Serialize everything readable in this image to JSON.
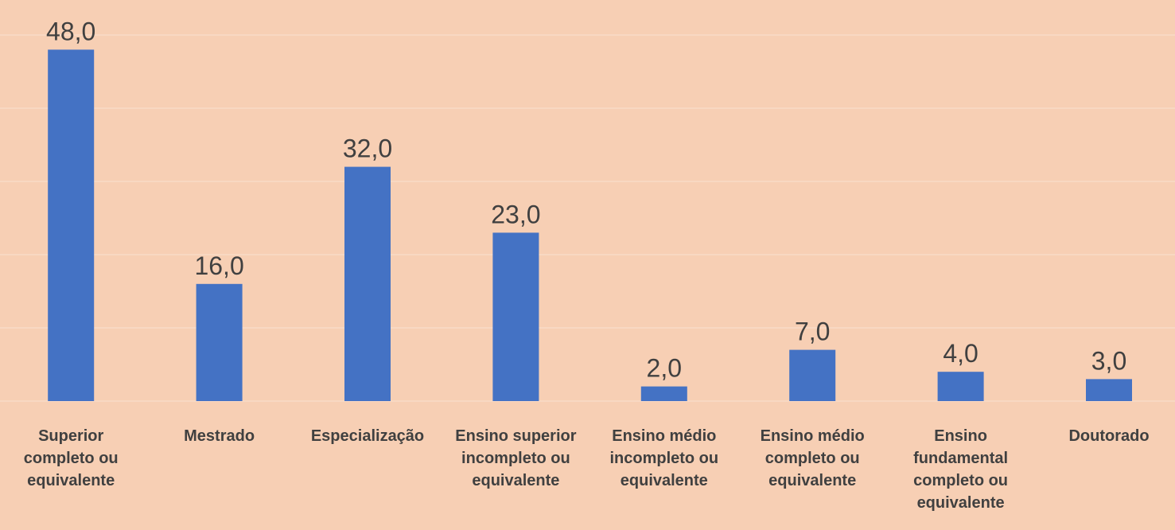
{
  "chart_data": {
    "type": "bar",
    "categories": [
      "Superior completo ou equivalente",
      "Mestrado",
      "Especialização",
      "Ensino superior incompleto ou equivalente",
      "Ensino médio incompleto ou equivalente",
      "Ensino médio completo ou equivalente",
      "Ensino fundamental completo ou equivalente",
      "Doutorado"
    ],
    "values": [
      48,
      16,
      32,
      23,
      2,
      7,
      4,
      3
    ],
    "value_labels": [
      "48,0",
      "16,0",
      "32,0",
      "23,0",
      "2,0",
      "7,0",
      "4,0",
      "3,0"
    ],
    "color": "#4472c4",
    "ylim": [
      0,
      50
    ],
    "yticks": [
      0,
      10,
      20,
      30,
      40,
      50
    ],
    "grid": true
  }
}
